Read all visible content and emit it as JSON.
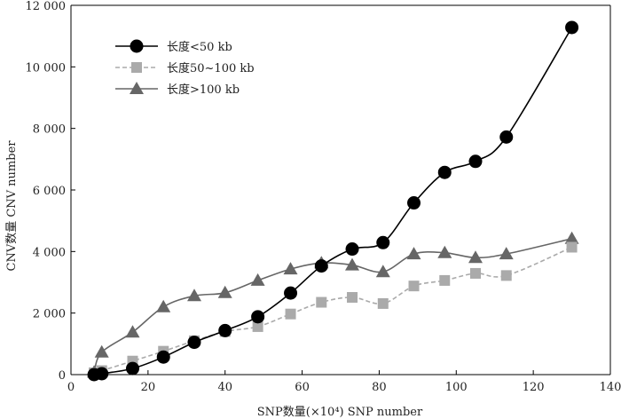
{
  "chart_data": {
    "type": "line",
    "title": "",
    "xlabel": "SNP数量(×10⁴)  SNP number",
    "ylabel": "CNV数量  CNV number",
    "xlim": [
      0,
      140
    ],
    "ylim": [
      0,
      12000
    ],
    "x_ticks": [
      0,
      20,
      40,
      60,
      80,
      100,
      120,
      140
    ],
    "y_ticks": [
      0,
      2000,
      4000,
      6000,
      8000,
      10000,
      12000
    ],
    "x_tick_labels": [
      "0",
      "20",
      "40",
      "60",
      "80",
      "100",
      "120",
      "140"
    ],
    "y_tick_labels": [
      "0",
      "2 000",
      "4 000",
      "6 000",
      "8 000",
      "10 000",
      "12 000"
    ],
    "grid": false,
    "legend_position": "top-left",
    "series": [
      {
        "name": "长度<50 kb",
        "marker": "circle",
        "line_style": "solid",
        "color": "#000000",
        "x": [
          6,
          8,
          16,
          24,
          32,
          40,
          48.5,
          57,
          65,
          73,
          81,
          89,
          97,
          105,
          113,
          130
        ],
        "y": [
          0,
          30,
          200,
          570,
          1050,
          1430,
          1880,
          2650,
          3530,
          4080,
          4290,
          5580,
          6570,
          6930,
          7720,
          11280
        ]
      },
      {
        "name": "长度50~100 kb",
        "marker": "square",
        "line_style": "dashed",
        "color": "#aaaaaa",
        "x": [
          6,
          8,
          16,
          24,
          32,
          40,
          48.5,
          57,
          65,
          73,
          81,
          89,
          97,
          105,
          113,
          130
        ],
        "y": [
          60,
          130,
          440,
          760,
          1100,
          1400,
          1560,
          1970,
          2350,
          2510,
          2310,
          2880,
          3060,
          3290,
          3220,
          4140
        ]
      },
      {
        "name": "长度>100 kb",
        "marker": "triangle",
        "line_style": "solid",
        "color": "#666666",
        "x": [
          6,
          8,
          16,
          24,
          32,
          40,
          48.5,
          57,
          65,
          73,
          81,
          89,
          97,
          105,
          113,
          130
        ],
        "y": [
          80,
          730,
          1380,
          2200,
          2560,
          2660,
          3060,
          3430,
          3630,
          3560,
          3340,
          3920,
          3960,
          3800,
          3920,
          4420
        ]
      }
    ]
  }
}
